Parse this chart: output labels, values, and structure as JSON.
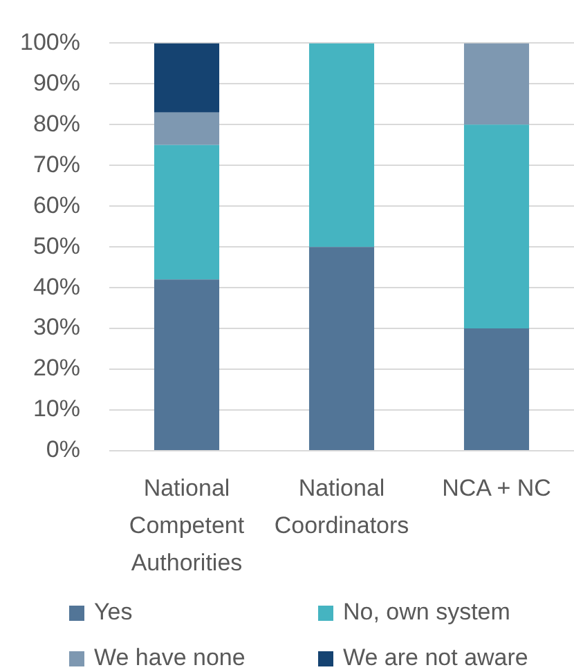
{
  "chart_data": {
    "type": "bar",
    "stacked": true,
    "categories": [
      "National Competent Authorities",
      "National Coordinators",
      "NCA + NC"
    ],
    "series": [
      {
        "name": "Yes",
        "color": "#527597",
        "values": [
          42,
          50,
          30
        ]
      },
      {
        "name": "No, own system",
        "color": "#45b4c1",
        "values": [
          33,
          50,
          50
        ]
      },
      {
        "name": "We have none",
        "color": "#7e98b1",
        "values": [
          8,
          null,
          20
        ]
      },
      {
        "name": "We are not aware",
        "color": "#154371",
        "values": [
          17,
          null,
          null
        ]
      }
    ],
    "ylim": [
      0,
      100
    ],
    "yticks": [
      {
        "value": 0,
        "label": "0%"
      },
      {
        "value": 10,
        "label": "10%"
      },
      {
        "value": 20,
        "label": "20%"
      },
      {
        "value": 30,
        "label": "30%"
      },
      {
        "value": 40,
        "label": "40%"
      },
      {
        "value": 50,
        "label": "50%"
      },
      {
        "value": 60,
        "label": "60%"
      },
      {
        "value": 70,
        "label": "70%"
      },
      {
        "value": 80,
        "label": "80%"
      },
      {
        "value": 90,
        "label": "90%"
      },
      {
        "value": 100,
        "label": "100%"
      }
    ],
    "grid": "y",
    "legend": "bottom"
  }
}
